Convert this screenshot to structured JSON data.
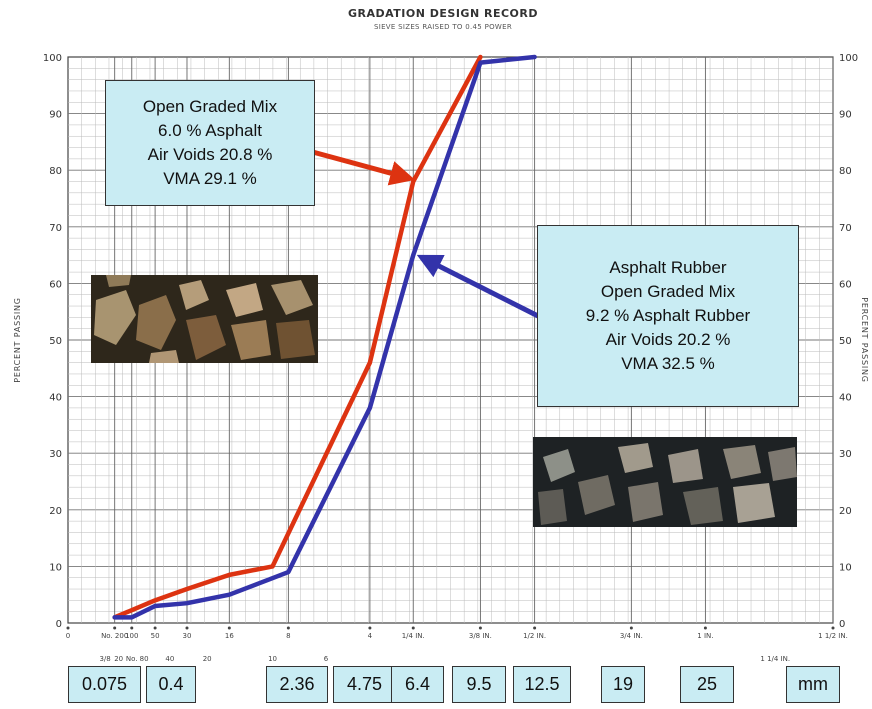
{
  "chart_data": {
    "type": "line",
    "title": "GRADATION DESIGN RECORD",
    "subtitle": "SIEVE SIZES RAISED TO 0.45 POWER",
    "ylabel": "PERCENT PASSING",
    "xscale": "sieve size raised to 0.45 power",
    "xlim": [
      0,
      37.5
    ],
    "ylim": [
      0,
      100
    ],
    "grid": true,
    "y_ticks": [
      0,
      10,
      20,
      30,
      40,
      50,
      60,
      70,
      80,
      90,
      100
    ],
    "sieve_labels": [
      {
        "text": "0",
        "x": 0,
        "row": 1
      },
      {
        "text": "No. 200",
        "x": 0.075,
        "row": 1
      },
      {
        "text": "100",
        "x": 0.15,
        "row": 1
      },
      {
        "text": "50",
        "x": 0.3,
        "row": 1
      },
      {
        "text": "30",
        "x": 0.6,
        "row": 1
      },
      {
        "text": "16",
        "x": 1.18,
        "row": 1
      },
      {
        "text": "8",
        "x": 2.36,
        "row": 1
      },
      {
        "text": "4",
        "x": 4.75,
        "row": 1
      },
      {
        "text": "1/4 IN.",
        "x": 6.4,
        "row": 1
      },
      {
        "text": "3/8 IN.",
        "x": 9.5,
        "row": 1
      },
      {
        "text": "1/2 IN.",
        "x": 12.5,
        "row": 1
      },
      {
        "text": "3/4 IN.",
        "x": 19,
        "row": 1
      },
      {
        "text": "1 IN.",
        "x": 25,
        "row": 1
      },
      {
        "text": "1 1/2 IN.",
        "x": 37.5,
        "row": 1
      },
      {
        "text": "3/8",
        "x": 0.045,
        "row": 2
      },
      {
        "text": "20",
        "x": 0.09,
        "row": 2
      },
      {
        "text": "No. 80",
        "x": 0.18,
        "row": 2
      },
      {
        "text": "40",
        "x": 0.425,
        "row": 2
      },
      {
        "text": "20",
        "x": 0.85,
        "row": 2
      },
      {
        "text": "10",
        "x": 2.0,
        "row": 2
      },
      {
        "text": "6",
        "x": 3.35,
        "row": 2
      },
      {
        "text": "1 1/4 IN.",
        "x": 31.5,
        "row": 2
      }
    ],
    "sieve_sizes_mm": [
      "0.075",
      "0.4",
      "2.36",
      "4.75",
      "6.4",
      "9.5",
      "12.5",
      "19",
      "25"
    ],
    "unit_label": "mm",
    "series": [
      {
        "color": "#dd3311",
        "x": [
          0.075,
          0.3,
          0.6,
          1.18,
          2.0,
          4.75,
          6.4,
          9.5
        ],
        "y": [
          1,
          4,
          6,
          8.5,
          10,
          46,
          78,
          100
        ]
      },
      {
        "color": "#3333aa",
        "x": [
          0.075,
          0.15,
          0.3,
          0.6,
          1.18,
          2.36,
          4.75,
          6.4,
          9.5,
          12.5
        ],
        "y": [
          1,
          1,
          3,
          3.5,
          5,
          9,
          38,
          65,
          99,
          100
        ]
      }
    ],
    "annotations": [
      {
        "lines": [
          "Open Graded Mix",
          "6.0 % Asphalt",
          "Air Voids 20.8 %",
          "VMA 29.1 %"
        ],
        "points_to": [
          6.4,
          78
        ],
        "color": "#dd3311"
      },
      {
        "lines": [
          "Asphalt Rubber",
          "Open Graded Mix",
          "9.2 % Asphalt Rubber",
          "Air Voids 20.2 %",
          "VMA 32.5 %"
        ],
        "points_to": [
          6.4,
          65
        ],
        "color": "#3333aa"
      }
    ]
  }
}
